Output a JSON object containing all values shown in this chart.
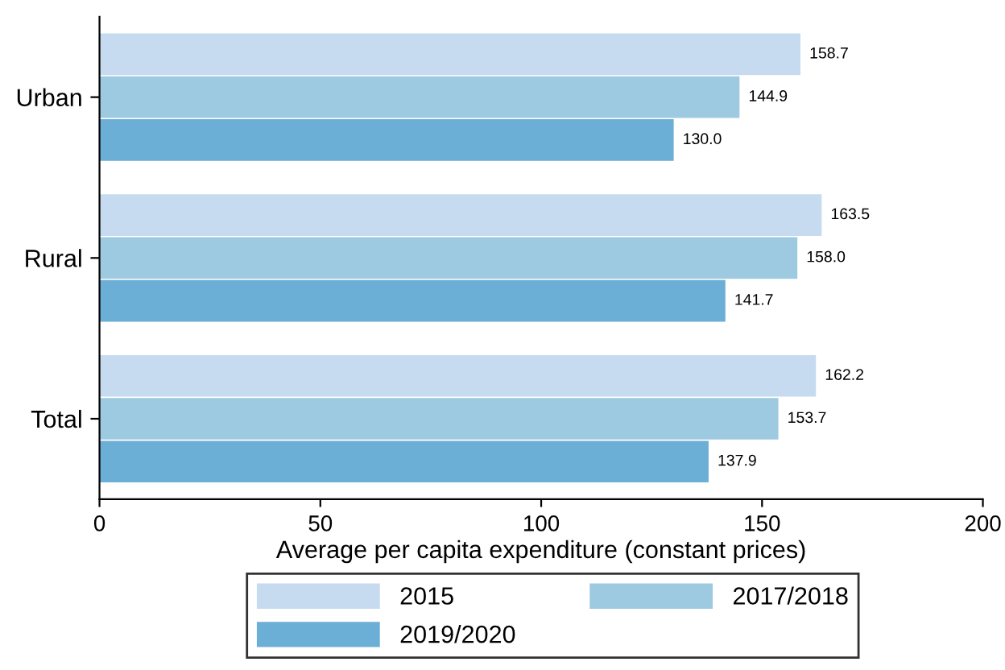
{
  "chart_data": {
    "type": "bar",
    "orientation": "horizontal",
    "xlabel": "Average per capita expenditure (constant prices)",
    "categories": [
      "Urban",
      "Rural",
      "Total"
    ],
    "series": [
      {
        "name": "2015",
        "color": "#c6dbef",
        "values": [
          158.7,
          163.5,
          162.2
        ],
        "value_labels": [
          "158.7",
          "163.5",
          "162.2"
        ]
      },
      {
        "name": "2017/2018",
        "color": "#9ecae1",
        "values": [
          144.9,
          158.0,
          153.7
        ],
        "value_labels": [
          "144.9",
          "158.0",
          "153.7"
        ]
      },
      {
        "name": "2019/2020",
        "color": "#6baed6",
        "values": [
          130.0,
          141.7,
          137.9
        ],
        "value_labels": [
          "130.0",
          "141.7",
          "137.9"
        ]
      }
    ],
    "xlim": [
      0,
      200
    ],
    "xticks": [
      0,
      50,
      100,
      150,
      200
    ],
    "grid": false,
    "legend": "bottom"
  }
}
